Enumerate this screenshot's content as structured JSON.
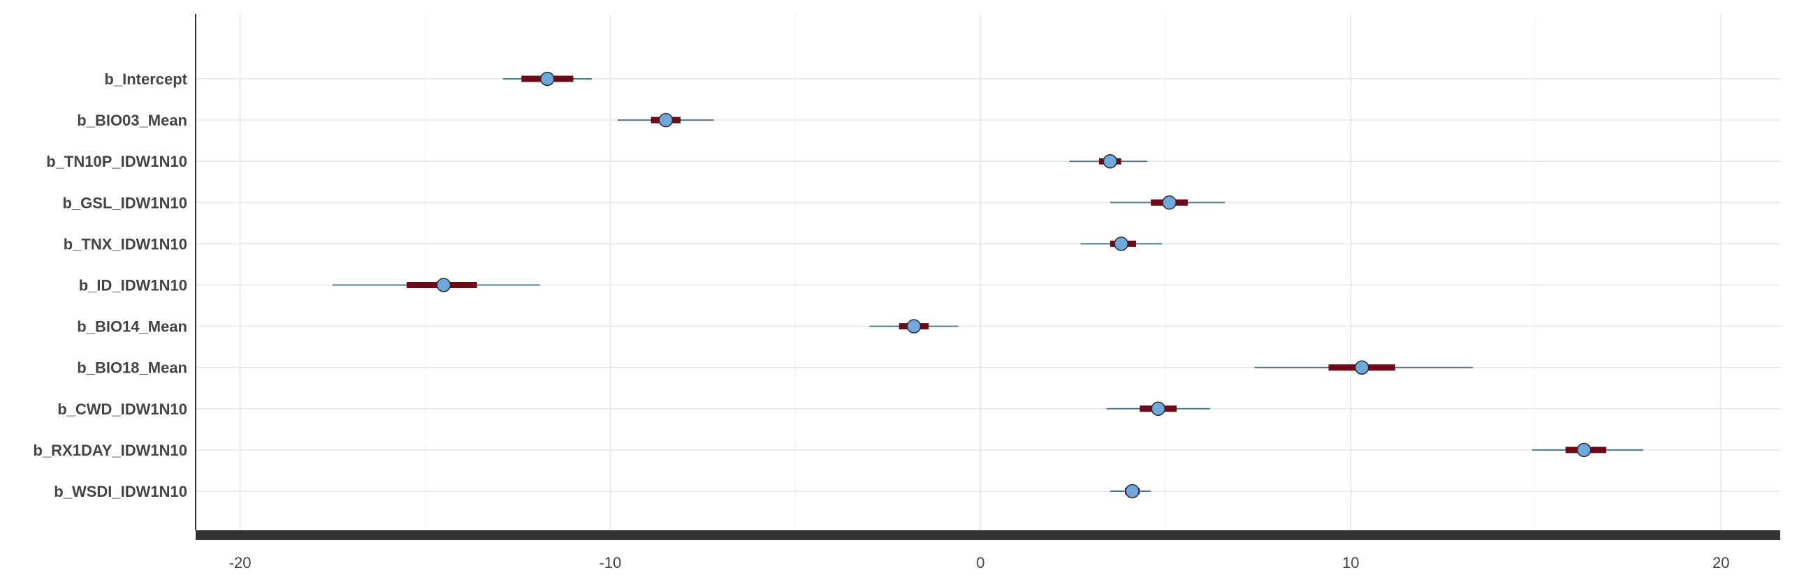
{
  "chart_data": {
    "type": "interval",
    "title": "",
    "xlabel": "",
    "ylabel": "",
    "xlim": [
      -21.2,
      21.6
    ],
    "x_ticks": [
      -20,
      -10,
      0,
      10,
      20
    ],
    "x_tick_labels": [
      "-20",
      "-10",
      "0",
      "10",
      "20"
    ],
    "grid": true,
    "colors": {
      "outer_interval": "#4e7a86",
      "inner_interval": "#6b0b1a",
      "point_fill": "#6fa8dc",
      "point_stroke": "#2b2b2b",
      "axis": "#333333"
    },
    "parameters": [
      {
        "label": "b_Intercept",
        "median": -11.7,
        "inner": [
          -12.4,
          -11.0
        ],
        "outer": [
          -12.9,
          -10.5
        ]
      },
      {
        "label": "b_BIO03_Mean",
        "median": -8.5,
        "inner": [
          -8.9,
          -8.1
        ],
        "outer": [
          -9.8,
          -7.2
        ]
      },
      {
        "label": "b_TN10P_IDW1N10",
        "median": 3.5,
        "inner": [
          3.2,
          3.8
        ],
        "outer": [
          2.4,
          4.5
        ]
      },
      {
        "label": "b_GSL_IDW1N10",
        "median": 5.1,
        "inner": [
          4.6,
          5.6
        ],
        "outer": [
          3.5,
          6.6
        ]
      },
      {
        "label": "b_TNX_IDW1N10",
        "median": 3.8,
        "inner": [
          3.5,
          4.2
        ],
        "outer": [
          2.7,
          4.9
        ]
      },
      {
        "label": "b_ID_IDW1N10",
        "median": -14.5,
        "inner": [
          -15.5,
          -13.6
        ],
        "outer": [
          -17.5,
          -11.9
        ]
      },
      {
        "label": "b_BIO14_Mean",
        "median": -1.8,
        "inner": [
          -2.2,
          -1.4
        ],
        "outer": [
          -3.0,
          -0.6
        ]
      },
      {
        "label": "b_BIO18_Mean",
        "median": 10.3,
        "inner": [
          9.4,
          11.2
        ],
        "outer": [
          7.4,
          13.3
        ]
      },
      {
        "label": "b_CWD_IDW1N10",
        "median": 4.8,
        "inner": [
          4.3,
          5.3
        ],
        "outer": [
          3.4,
          6.2
        ]
      },
      {
        "label": "b_RX1DAY_IDW1N10",
        "median": 16.3,
        "inner": [
          15.8,
          16.9
        ],
        "outer": [
          14.9,
          17.9
        ]
      },
      {
        "label": "b_WSDI_IDW1N10",
        "median": 4.1,
        "inner": [
          3.9,
          4.3
        ],
        "outer": [
          3.5,
          4.6
        ]
      }
    ]
  }
}
